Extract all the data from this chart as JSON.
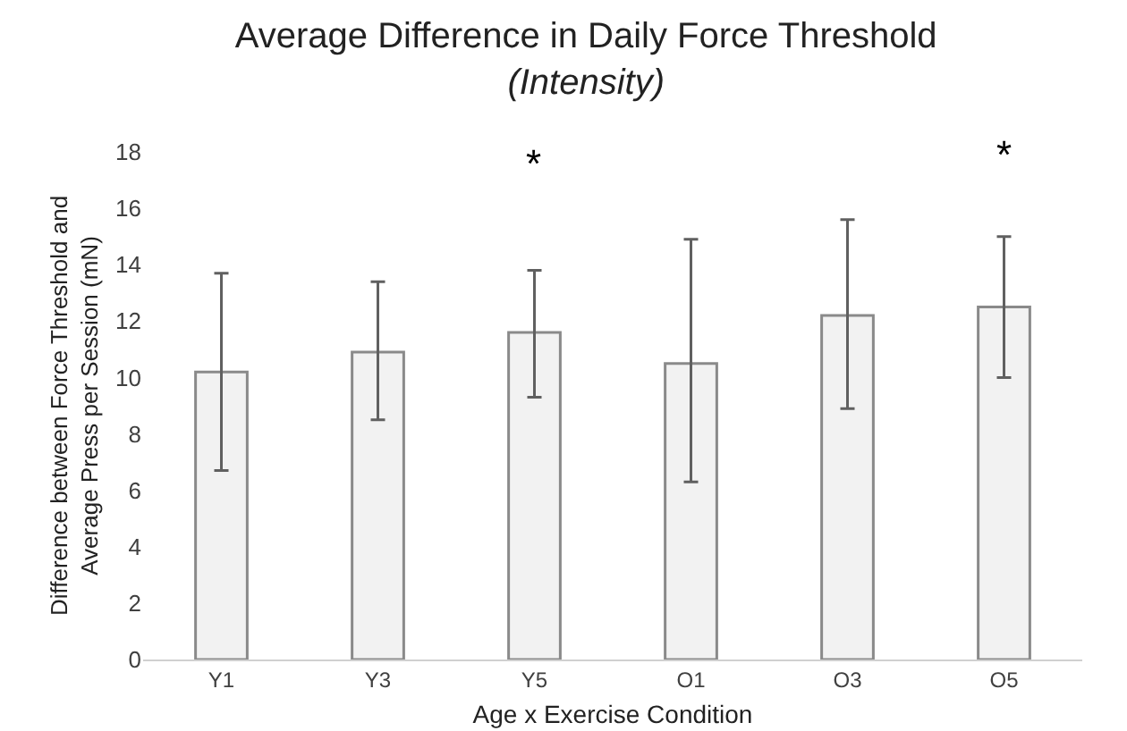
{
  "chart_data": {
    "type": "bar",
    "title": "Average Difference in Daily Force Threshold",
    "subtitle": "(Intensity)",
    "xlabel": "Age x Exercise Condition",
    "ylabel": "Difference between Force Threshold and Average Press per Session (mN)",
    "categories": [
      "Y1",
      "Y3",
      "Y5",
      "O1",
      "O3",
      "O5"
    ],
    "values": [
      10.2,
      10.9,
      11.6,
      10.5,
      12.2,
      12.5
    ],
    "errors": [
      [
        6.7,
        13.7
      ],
      [
        8.5,
        13.4
      ],
      [
        9.3,
        13.8
      ],
      [
        6.3,
        14.9
      ],
      [
        8.9,
        15.6
      ],
      [
        10.0,
        15.0
      ]
    ],
    "color": "#f2f2f2",
    "ylim": [
      0,
      18
    ],
    "yticks": [
      0,
      2,
      4,
      6,
      8,
      10,
      12,
      14,
      16,
      18
    ],
    "grid": false,
    "annotations": [
      "*",
      "*"
    ]
  }
}
